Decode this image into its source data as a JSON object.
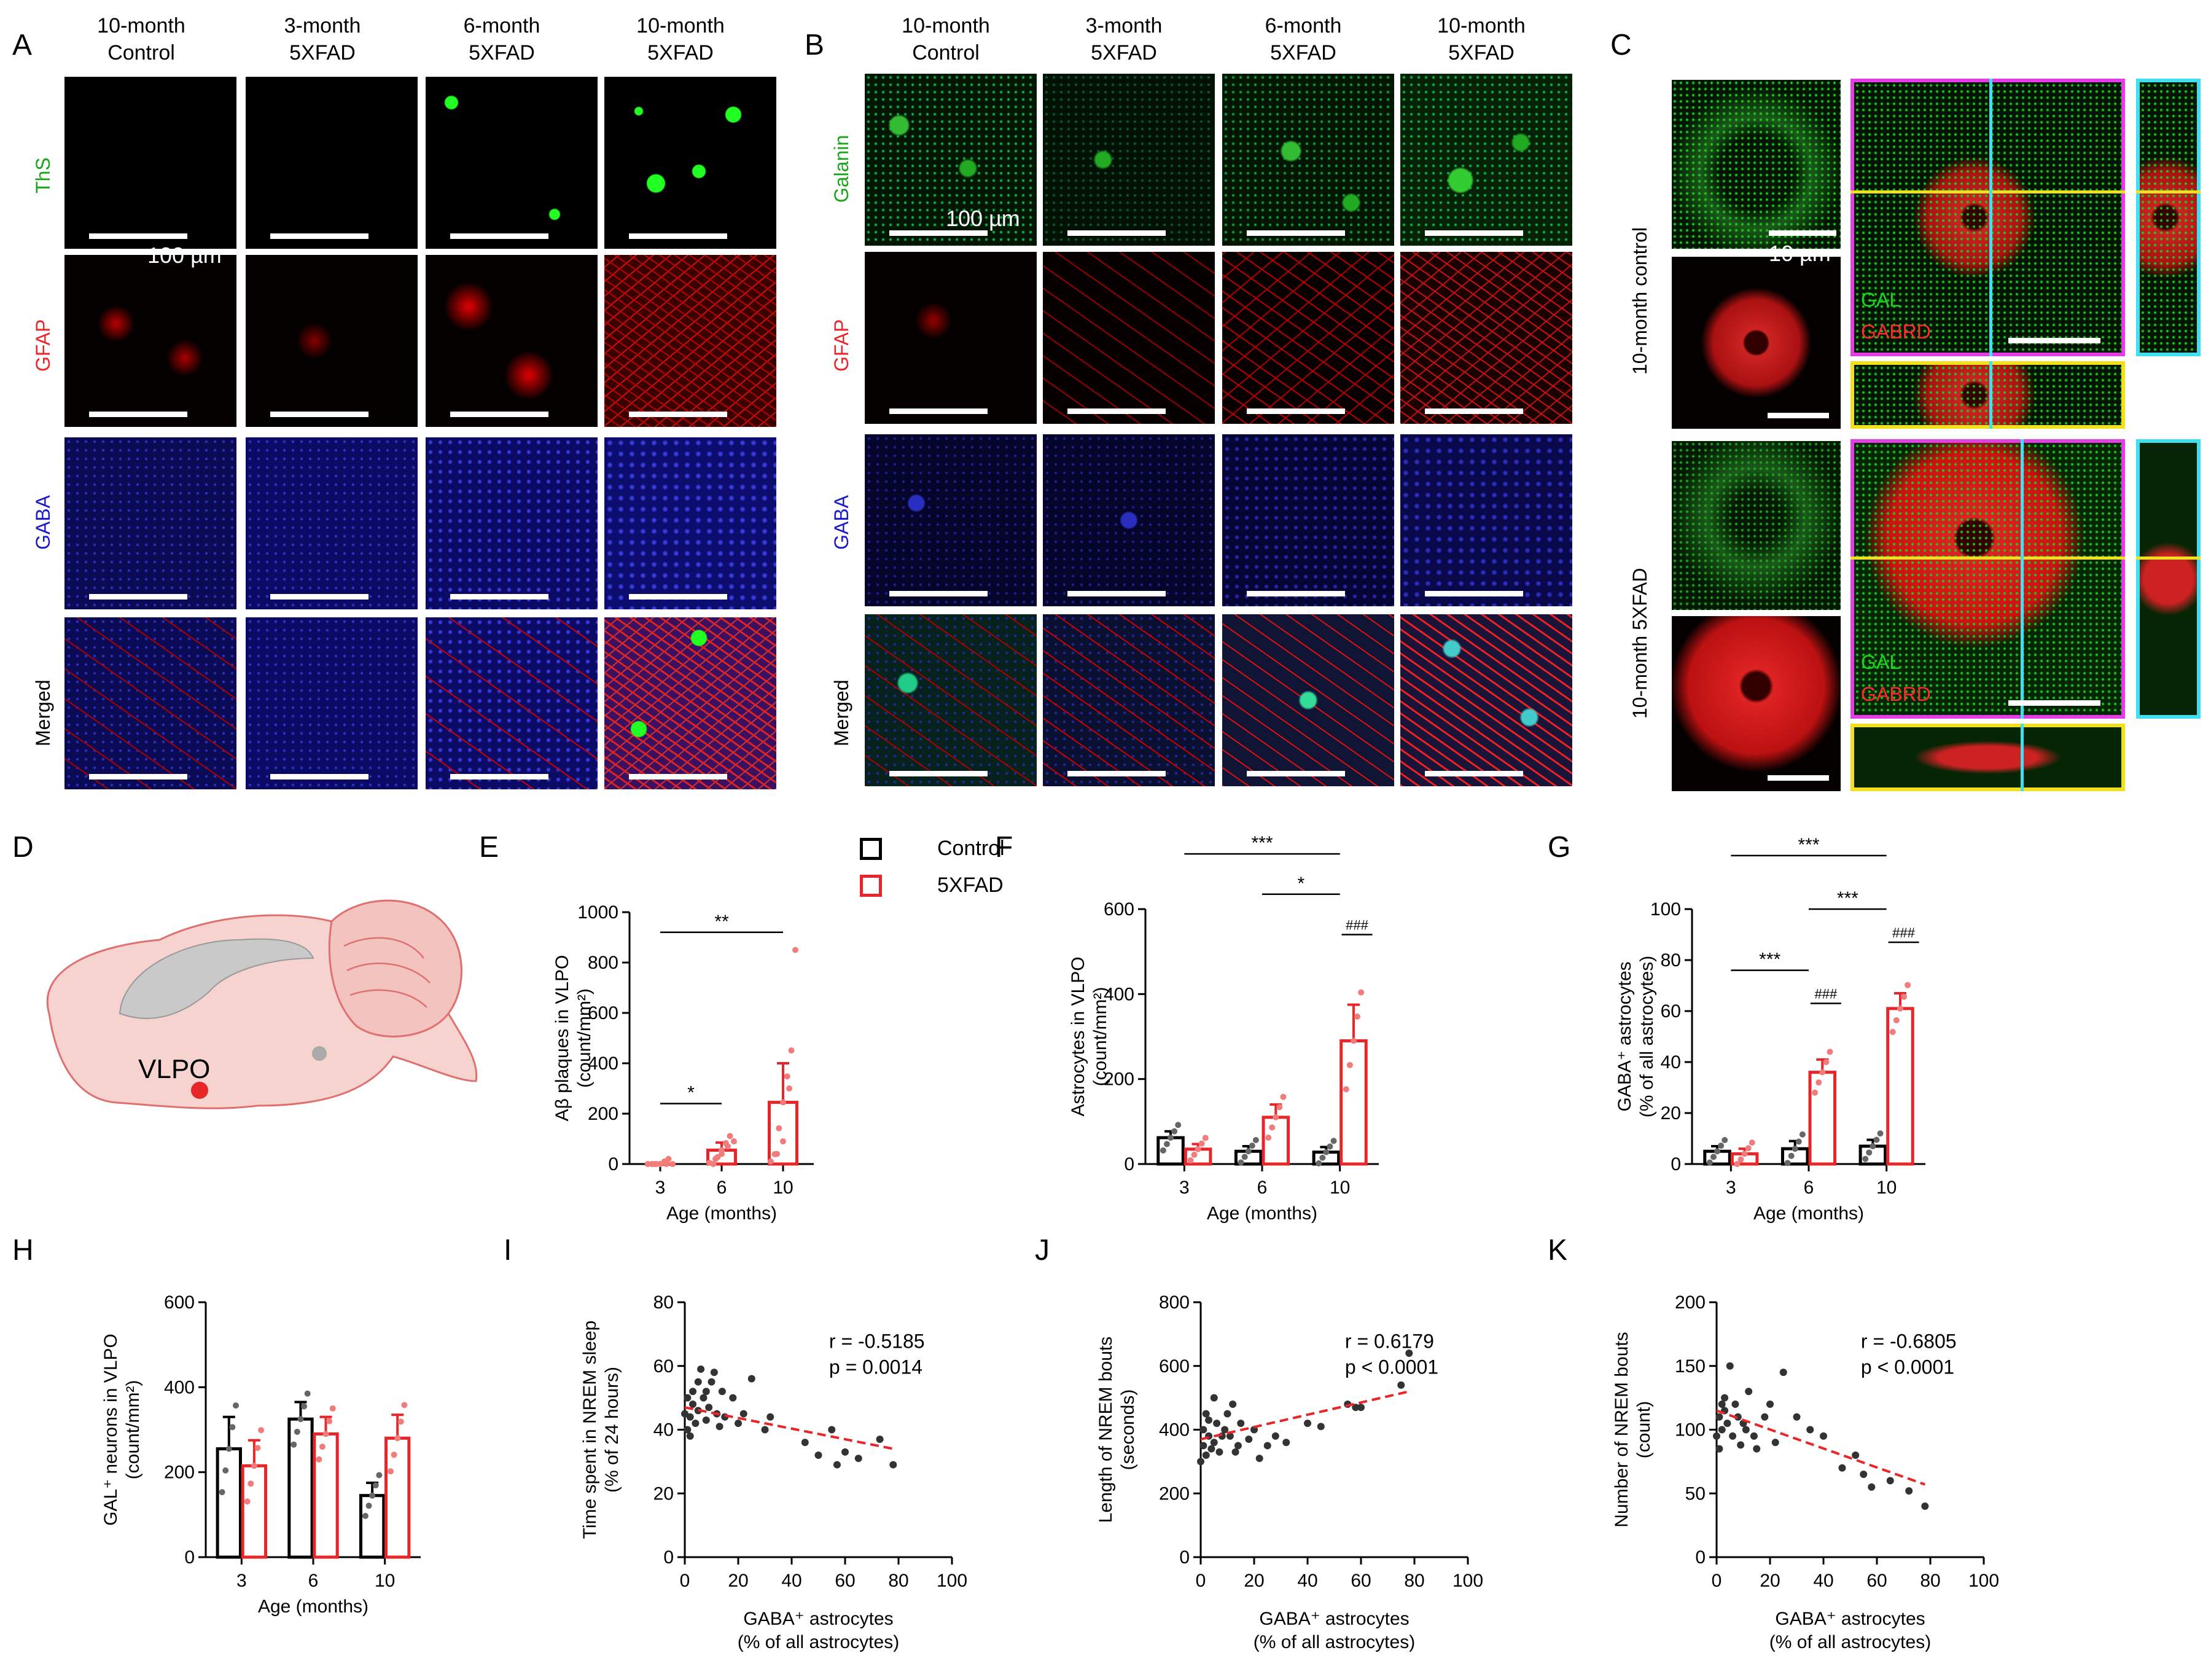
{
  "panel_letters": [
    "A",
    "B",
    "C",
    "D",
    "E",
    "F",
    "G",
    "H",
    "I",
    "J",
    "K"
  ],
  "micrograph_columns": [
    {
      "line1": "10-month",
      "line2": "Control"
    },
    {
      "line1": "3-month",
      "line2": "5XFAD"
    },
    {
      "line1": "6-month",
      "line2": "5XFAD"
    },
    {
      "line1": "10-month",
      "line2": "5XFAD"
    }
  ],
  "panel_a_rows": [
    "ThS",
    "GFAP",
    "GABA",
    "Merged"
  ],
  "panel_b_rows": [
    "Galanin",
    "GFAP",
    "GABA",
    "Merged"
  ],
  "panel_c_rows": [
    "10-month control",
    "10-month 5XFAD"
  ],
  "panel_c_channels": {
    "gal": "GAL",
    "gabrd": "GABRD"
  },
  "scalebars": {
    "large": "100 µm",
    "small": "10 µm"
  },
  "brain_label": "VLPO",
  "legend": {
    "control": "Control",
    "fxfad": "5XFAD"
  },
  "colors": {
    "control": "#000000",
    "fxfad": "#e8262a",
    "thS": "#1aa51a",
    "gfap": "#e8262a",
    "gaba": "#1a1ac9",
    "galanin": "#1aa51a",
    "dashed_fit": "#e8262a"
  },
  "chart_data": [
    {
      "panel": "E",
      "type": "bar",
      "xlabel": "Age (months)",
      "ylabel_line1": "Aβ plaques in VLPO",
      "ylabel_line2": "(count/mm²)",
      "categories": [
        "3",
        "6",
        "10"
      ],
      "ylim": [
        0,
        1000
      ],
      "yticks": [
        0,
        200,
        400,
        600,
        800,
        1000
      ],
      "series": [
        {
          "name": "5XFAD",
          "values": [
            0,
            55,
            245
          ],
          "errors": [
            0,
            30,
            155
          ]
        }
      ],
      "points": [
        [
          0,
          0,
          0,
          0,
          0
        ],
        [
          5,
          20,
          40,
          70,
          90
        ],
        [
          10,
          40,
          90,
          300,
          850
        ]
      ],
      "brackets": [
        {
          "from": 0,
          "to": 1,
          "y": 240,
          "label": "*"
        },
        {
          "from": 0,
          "to": 2,
          "y": 920,
          "label": "**"
        }
      ]
    },
    {
      "panel": "F",
      "type": "bar",
      "xlabel": "Age (months)",
      "ylabel_line1": "Astrocytes in VLPO",
      "ylabel_line2": "(count/mm²)",
      "categories": [
        "3",
        "6",
        "10"
      ],
      "ylim": [
        0,
        600
      ],
      "yticks": [
        0,
        200,
        400,
        600
      ],
      "series": [
        {
          "name": "Control",
          "values": [
            62,
            30,
            28
          ],
          "errors": [
            15,
            12,
            12
          ]
        },
        {
          "name": "5XFAD",
          "values": [
            35,
            110,
            290
          ],
          "errors": [
            12,
            30,
            85
          ]
        }
      ],
      "brackets": [
        {
          "from": 0,
          "to": 2,
          "y": 730,
          "label": "***"
        },
        {
          "from": 1,
          "to": 2,
          "y": 635,
          "label": "*"
        },
        {
          "from": 2.22,
          "to": 2.22,
          "y": 540,
          "label": "###"
        }
      ]
    },
    {
      "panel": "G",
      "type": "bar",
      "xlabel": "Age (months)",
      "ylabel_line1": "GABA⁺ astrocytes",
      "ylabel_line2": "(% of all astrocytes)",
      "categories": [
        "3",
        "6",
        "10"
      ],
      "ylim": [
        0,
        100
      ],
      "yticks": [
        0,
        20,
        40,
        60,
        80,
        100
      ],
      "series": [
        {
          "name": "Control",
          "values": [
            5,
            6,
            7
          ],
          "errors": [
            2,
            3,
            2.5
          ]
        },
        {
          "name": "5XFAD",
          "values": [
            4,
            36,
            61
          ],
          "errors": [
            2,
            5,
            6
          ]
        }
      ],
      "brackets": [
        {
          "from": 0,
          "to": 2,
          "y": 121,
          "label": "***"
        },
        {
          "from": 0,
          "to": 1,
          "y": 76,
          "label": "***"
        },
        {
          "from": 1,
          "to": 2,
          "y": 100,
          "label": "***"
        },
        {
          "from": 1.22,
          "to": 1.22,
          "y": 63,
          "label": "###"
        },
        {
          "from": 2.22,
          "to": 2.22,
          "y": 87,
          "label": "###"
        }
      ]
    },
    {
      "panel": "H",
      "type": "bar",
      "xlabel": "Age (months)",
      "ylabel_line1": "GAL⁺ neurons in VLPO",
      "ylabel_line2": "(count/mm²)",
      "categories": [
        "3",
        "6",
        "10"
      ],
      "ylim": [
        0,
        600
      ],
      "yticks": [
        0,
        200,
        400,
        600
      ],
      "series": [
        {
          "name": "Control",
          "values": [
            255,
            325,
            145
          ],
          "errors": [
            75,
            40,
            30
          ]
        },
        {
          "name": "5XFAD",
          "values": [
            215,
            290,
            280
          ],
          "errors": [
            60,
            40,
            55
          ]
        }
      ]
    },
    {
      "panel": "I",
      "type": "scatter",
      "xlabel_line1": "GABA⁺ astrocytes",
      "xlabel_line2": "(% of all astrocytes)",
      "ylabel_line1": "Time spent in NREM sleep",
      "ylabel_line2": "(% of 24 hours)",
      "xlim": [
        0,
        100
      ],
      "ylim": [
        0,
        80
      ],
      "xticks": [
        0,
        20,
        40,
        60,
        80,
        100
      ],
      "yticks": [
        0,
        20,
        40,
        60,
        80
      ],
      "stat_r": "r = -0.5185",
      "stat_p": "p = 0.0014",
      "fit": [
        [
          0,
          47
        ],
        [
          78,
          34
        ]
      ],
      "points": [
        [
          0,
          45
        ],
        [
          1,
          40
        ],
        [
          1,
          50
        ],
        [
          2,
          44
        ],
        [
          2,
          38
        ],
        [
          3,
          48
        ],
        [
          3,
          52
        ],
        [
          4,
          42
        ],
        [
          5,
          46
        ],
        [
          6,
          59
        ],
        [
          7,
          50
        ],
        [
          8,
          43
        ],
        [
          9,
          47
        ],
        [
          10,
          55
        ],
        [
          11,
          58
        ],
        [
          12,
          45
        ],
        [
          14,
          52
        ],
        [
          15,
          44
        ],
        [
          18,
          50
        ],
        [
          20,
          42
        ],
        [
          22,
          45
        ],
        [
          25,
          56
        ],
        [
          30,
          40
        ],
        [
          32,
          44
        ],
        [
          45,
          36
        ],
        [
          50,
          32
        ],
        [
          55,
          40
        ],
        [
          57,
          29
        ],
        [
          60,
          33
        ],
        [
          65,
          31
        ],
        [
          73,
          37
        ],
        [
          78,
          29
        ],
        [
          5,
          55
        ],
        [
          8,
          52
        ],
        [
          13,
          41
        ]
      ]
    },
    {
      "panel": "J",
      "type": "scatter",
      "xlabel_line1": "GABA⁺ astrocytes",
      "xlabel_line2": "(% of all astrocytes)",
      "ylabel_line1": "Length of NREM bouts",
      "ylabel_line2": "(seconds)",
      "xlim": [
        0,
        100
      ],
      "ylim": [
        0,
        800
      ],
      "xticks": [
        0,
        20,
        40,
        60,
        80,
        100
      ],
      "yticks": [
        0,
        200,
        400,
        600,
        800
      ],
      "stat_r": "r = 0.6179",
      "stat_p": "p < 0.0001",
      "fit": [
        [
          0,
          370
        ],
        [
          78,
          520
        ]
      ],
      "points": [
        [
          0,
          300
        ],
        [
          1,
          350
        ],
        [
          1,
          400
        ],
        [
          2,
          320
        ],
        [
          2,
          450
        ],
        [
          3,
          380
        ],
        [
          4,
          340
        ],
        [
          5,
          360
        ],
        [
          6,
          420
        ],
        [
          7,
          330
        ],
        [
          8,
          380
        ],
        [
          9,
          400
        ],
        [
          10,
          450
        ],
        [
          11,
          380
        ],
        [
          12,
          480
        ],
        [
          14,
          350
        ],
        [
          15,
          420
        ],
        [
          18,
          370
        ],
        [
          20,
          400
        ],
        [
          22,
          310
        ],
        [
          25,
          350
        ],
        [
          28,
          380
        ],
        [
          32,
          360
        ],
        [
          40,
          420
        ],
        [
          45,
          410
        ],
        [
          55,
          480
        ],
        [
          58,
          470
        ],
        [
          60,
          470
        ],
        [
          75,
          540
        ],
        [
          78,
          640
        ],
        [
          5,
          500
        ],
        [
          3,
          430
        ],
        [
          13,
          330
        ]
      ]
    },
    {
      "panel": "K",
      "type": "scatter",
      "xlabel_line1": "GABA⁺ astrocytes",
      "xlabel_line2": "(% of all astrocytes)",
      "ylabel_line1": "Number of NREM bouts",
      "ylabel_line2": "(count)",
      "xlim": [
        0,
        100
      ],
      "ylim": [
        0,
        200
      ],
      "xticks": [
        0,
        20,
        40,
        60,
        80,
        100
      ],
      "yticks": [
        0,
        50,
        100,
        150,
        200
      ],
      "stat_r": "r = -0.6805",
      "stat_p": "p < 0.0001",
      "fit": [
        [
          0,
          115
        ],
        [
          78,
          57
        ]
      ],
      "points": [
        [
          0,
          95
        ],
        [
          1,
          85
        ],
        [
          1,
          110
        ],
        [
          2,
          120
        ],
        [
          2,
          100
        ],
        [
          3,
          115
        ],
        [
          4,
          105
        ],
        [
          5,
          150
        ],
        [
          6,
          95
        ],
        [
          7,
          120
        ],
        [
          8,
          110
        ],
        [
          10,
          105
        ],
        [
          11,
          100
        ],
        [
          12,
          130
        ],
        [
          14,
          95
        ],
        [
          15,
          85
        ],
        [
          18,
          110
        ],
        [
          20,
          120
        ],
        [
          22,
          90
        ],
        [
          25,
          145
        ],
        [
          30,
          110
        ],
        [
          35,
          100
        ],
        [
          40,
          95
        ],
        [
          47,
          70
        ],
        [
          52,
          80
        ],
        [
          55,
          65
        ],
        [
          58,
          55
        ],
        [
          65,
          60
        ],
        [
          72,
          52
        ],
        [
          78,
          40
        ],
        [
          3,
          125
        ],
        [
          9,
          88
        ]
      ]
    }
  ]
}
